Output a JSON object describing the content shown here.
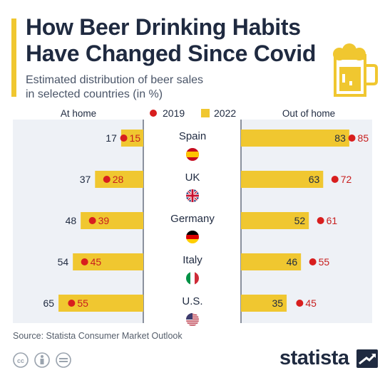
{
  "header": {
    "title_line1": "How Beer Drinking Habits",
    "title_line2": "Have Changed Since Covid",
    "subtitle_line1": "Estimated distribution of beer sales",
    "subtitle_line2": "in selected countries (in %)"
  },
  "colors": {
    "accent": "#f0c730",
    "bar_2022": "#f0c730",
    "dot_2019": "#d81e1e",
    "panel_bg": "#eef1f6",
    "text_dark": "#1f2a40",
    "label_2019": "#c81e1e"
  },
  "chart_data": {
    "type": "bar",
    "categories": [
      "Spain",
      "UK",
      "Germany",
      "Italy",
      "U.S."
    ],
    "flags": [
      "spain-flag-icon",
      "uk-flag-icon",
      "germany-flag-icon",
      "italy-flag-icon",
      "us-flag-icon"
    ],
    "panels": [
      {
        "label": "At home",
        "series": [
          {
            "name": "2022",
            "values": [
              17,
              37,
              48,
              54,
              65
            ]
          },
          {
            "name": "2019",
            "values": [
              15,
              28,
              39,
              45,
              55
            ]
          }
        ]
      },
      {
        "label": "Out of home",
        "series": [
          {
            "name": "2022",
            "values": [
              83,
              63,
              52,
              46,
              35
            ]
          },
          {
            "name": "2019",
            "values": [
              85,
              72,
              61,
              55,
              45
            ]
          }
        ]
      }
    ],
    "legend": [
      {
        "name": "2019",
        "marker": "dot"
      },
      {
        "name": "2022",
        "marker": "square"
      }
    ],
    "legend_position": "top-center",
    "xlim": [
      0,
      100
    ]
  },
  "footer": {
    "source": "Source: Statista Consumer Market Outlook",
    "brand": "statista"
  }
}
